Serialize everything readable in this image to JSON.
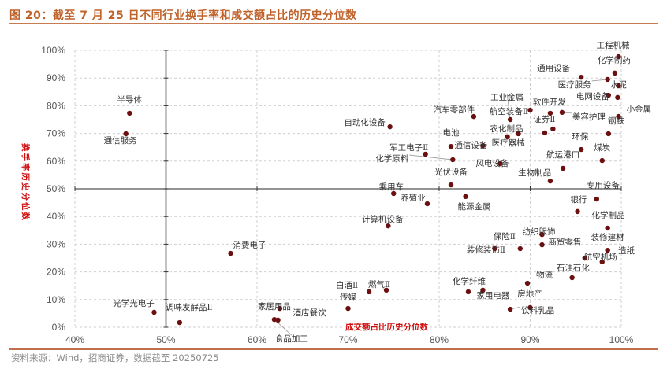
{
  "title": "图 20：截至 7 月 25 日不同行业换手率和成交额占比的历史分位数",
  "source": "资料来源：Wind，招商证券，数据截至 20250725",
  "colors": {
    "title": "#c0632b",
    "point": "#6b0f10",
    "axis_title": "#d01010"
  },
  "chart_data": {
    "type": "scatter",
    "xlabel": "成交额占比历史分位数",
    "ylabel": "换手率历史分位数",
    "xlim": [
      40,
      100
    ],
    "ylim": [
      0,
      100
    ],
    "x_ticks": [
      "40%",
      "50%",
      "60%",
      "70%",
      "80%",
      "90%",
      "100%"
    ],
    "y_ticks": [
      "0%",
      "10%",
      "20%",
      "30%",
      "40%",
      "50%",
      "60%",
      "70%",
      "80%",
      "90%",
      "100%"
    ],
    "grid": true,
    "reference_lines": {
      "x": 50,
      "y": 50
    },
    "points": [
      {
        "label": "工程机械",
        "x": 99.7,
        "y": 97.7
      },
      {
        "label": "化学制药",
        "x": 99.3,
        "y": 91.8
      },
      {
        "label": "通用设备",
        "x": 95.6,
        "y": 90.3
      },
      {
        "label": "医疗服务",
        "x": 98.5,
        "y": 89.5
      },
      {
        "label": "水泥",
        "x": 99.7,
        "y": 87.2
      },
      {
        "label": "电网设备",
        "x": 98.6,
        "y": 83.8
      },
      {
        "label": "小金属",
        "x": 99.6,
        "y": 83.0
      },
      {
        "label": "钢铁",
        "x": 99.7,
        "y": 76.1
      },
      {
        "label": "汽车零部件",
        "x": 83.8,
        "y": 76.1
      },
      {
        "label": "航空装备Ⅱ",
        "x": 90.0,
        "y": 78.4
      },
      {
        "label": "工业金属",
        "x": 87.8,
        "y": 75.0
      },
      {
        "label": "软件开发",
        "x": 92.2,
        "y": 77.3
      },
      {
        "label": "美容护理",
        "x": 93.5,
        "y": 77.6
      },
      {
        "label": "证券Ⅱ",
        "x": 92.5,
        "y": 71.6
      },
      {
        "label": "环保",
        "x": 98.6,
        "y": 69.9
      },
      {
        "label": "农化制品",
        "x": 88.7,
        "y": 69.9
      },
      {
        "label": "医疗器械",
        "x": 87.5,
        "y": 68.8
      },
      {
        "label": "通信设备",
        "x": 84.8,
        "y": 65.6
      },
      {
        "label": "电池",
        "x": 81.3,
        "y": 65.3
      },
      {
        "label": "航运港口",
        "x": 95.6,
        "y": 64.2
      },
      {
        "label": "风电设备",
        "x": 86.7,
        "y": 59.1
      },
      {
        "label": "煤炭",
        "x": 97.9,
        "y": 60.2
      },
      {
        "label": "生物制品",
        "x": 93.6,
        "y": 57.4
      },
      {
        "label": "专用设备",
        "x": 92.2,
        "y": 52.8
      },
      {
        "label": "自动化设备",
        "x": 74.6,
        "y": 72.4
      },
      {
        "label": "军工电子Ⅱ",
        "x": 78.5,
        "y": 62.5
      },
      {
        "label": "化学原料",
        "x": 81.5,
        "y": 60.5
      },
      {
        "label": "光伏设备",
        "x": 81.3,
        "y": 51.4
      },
      {
        "label": "乘用车",
        "x": 75.0,
        "y": 48.3
      },
      {
        "label": "能源金属",
        "x": 82.9,
        "y": 47.2
      },
      {
        "label": "养殖业",
        "x": 78.7,
        "y": 44.6
      },
      {
        "label": "计算机设备",
        "x": 74.4,
        "y": 36.6
      },
      {
        "label": "银行",
        "x": 97.3,
        "y": 46.3
      },
      {
        "label": "化学制品",
        "x": 95.2,
        "y": 41.8
      },
      {
        "label": "装修建材",
        "x": 98.5,
        "y": 35.8
      },
      {
        "label": "纺织服饰",
        "x": 91.3,
        "y": 33.5
      },
      {
        "label": "保险Ⅱ",
        "x": 88.9,
        "y": 28.4
      },
      {
        "label": "商贸零售",
        "x": 91.3,
        "y": 29.8
      },
      {
        "label": "装修装饰Ⅱ",
        "x": 86.1,
        "y": 28.4
      },
      {
        "label": "造纸",
        "x": 98.5,
        "y": 27.8
      },
      {
        "label": "航空机场",
        "x": 97.9,
        "y": 23.6
      },
      {
        "label": "石油石化",
        "x": 96.0,
        "y": 25.0
      },
      {
        "label": "物流",
        "x": 94.6,
        "y": 17.9
      },
      {
        "label": "房地产",
        "x": 89.7,
        "y": 15.9
      },
      {
        "label": "化学纤维",
        "x": 83.2,
        "y": 12.8
      },
      {
        "label": "家用电器",
        "x": 84.8,
        "y": 13.4
      },
      {
        "label": "饮料乳品",
        "x": 87.8,
        "y": 6.5
      },
      {
        "label": "白酒Ⅱ",
        "x": 72.3,
        "y": 12.8
      },
      {
        "label": "燃气Ⅱ",
        "x": 74.2,
        "y": 13.4
      },
      {
        "label": "传媒",
        "x": 70.0,
        "y": 6.8
      },
      {
        "label": "家居用品",
        "x": 62.5,
        "y": 6.8
      },
      {
        "label": "酒店餐饮",
        "x": 62.3,
        "y": 2.6
      },
      {
        "label": "食品加工",
        "x": 61.9,
        "y": 2.8
      },
      {
        "label": "消费电子",
        "x": 57.1,
        "y": 26.7
      },
      {
        "label": "光学光电子",
        "x": 48.7,
        "y": 5.4
      },
      {
        "label": "调味发酵品Ⅱ",
        "x": 51.5,
        "y": 1.7
      },
      {
        "label": "半导体",
        "x": 46.0,
        "y": 77.3
      },
      {
        "label": "通信服务",
        "x": 45.6,
        "y": 69.9
      },
      {
        "label": "",
        "x": 91.6,
        "y": 70.2
      },
      {
        "label": "",
        "x": 90.0,
        "y": 7.1
      }
    ]
  }
}
